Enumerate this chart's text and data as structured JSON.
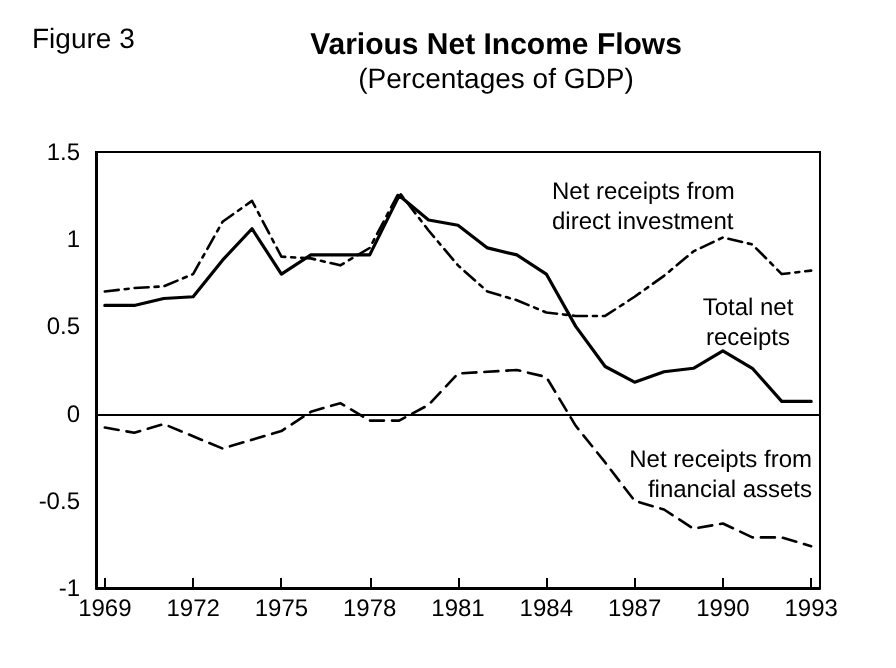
{
  "chart_data": {
    "type": "line",
    "title": "Various Net Income Flows",
    "subtitle": "(Percentages of GDP)",
    "annotations": [
      "Figure 3"
    ],
    "x": [
      1969,
      1970,
      1971,
      1972,
      1973,
      1974,
      1975,
      1976,
      1977,
      1978,
      1979,
      1980,
      1981,
      1982,
      1983,
      1984,
      1985,
      1986,
      1987,
      1988,
      1989,
      1990,
      1991,
      1992,
      1993
    ],
    "series": [
      {
        "name": "Net receipts from\ndirect investment",
        "color": "#000000",
        "line_style": "dashed",
        "values": [
          0.7,
          0.72,
          0.73,
          0.8,
          1.1,
          1.22,
          0.9,
          0.89,
          0.85,
          0.95,
          1.27,
          1.05,
          0.85,
          0.7,
          0.65,
          0.58,
          0.56,
          0.56,
          0.67,
          0.79,
          0.93,
          1.01,
          0.97,
          0.8,
          0.82
        ]
      },
      {
        "name": "Total net\nreceipts",
        "color": "#000000",
        "line_style": "solid",
        "values": [
          0.62,
          0.62,
          0.66,
          0.67,
          0.88,
          1.06,
          0.8,
          0.91,
          0.91,
          0.91,
          1.25,
          1.11,
          1.08,
          0.95,
          0.91,
          0.8,
          0.5,
          0.27,
          0.18,
          0.24,
          0.26,
          0.36,
          0.26,
          0.07,
          0.07
        ]
      },
      {
        "name": "Net receipts from\nfinancial assets",
        "color": "#000000",
        "line_style": "dashed",
        "values": [
          -0.08,
          -0.11,
          -0.06,
          -0.13,
          -0.2,
          -0.15,
          -0.1,
          0.01,
          0.06,
          -0.04,
          -0.04,
          0.05,
          0.23,
          0.24,
          0.25,
          0.21,
          -0.07,
          -0.28,
          -0.5,
          -0.55,
          -0.66,
          -0.63,
          -0.71,
          -0.71,
          -0.76
        ]
      }
    ],
    "xlim": [
      1968.7,
      1993.3
    ],
    "xticks": [
      1969,
      1972,
      1975,
      1978,
      1981,
      1984,
      1987,
      1990,
      1993
    ],
    "ylim": [
      -1,
      1.5
    ],
    "yticks": [
      -1,
      -0.5,
      0,
      0.5,
      1,
      1.5
    ],
    "ref_lines": [
      {
        "axis": "y",
        "value": 0
      }
    ],
    "grid": false,
    "legend": false,
    "marker": "none"
  }
}
